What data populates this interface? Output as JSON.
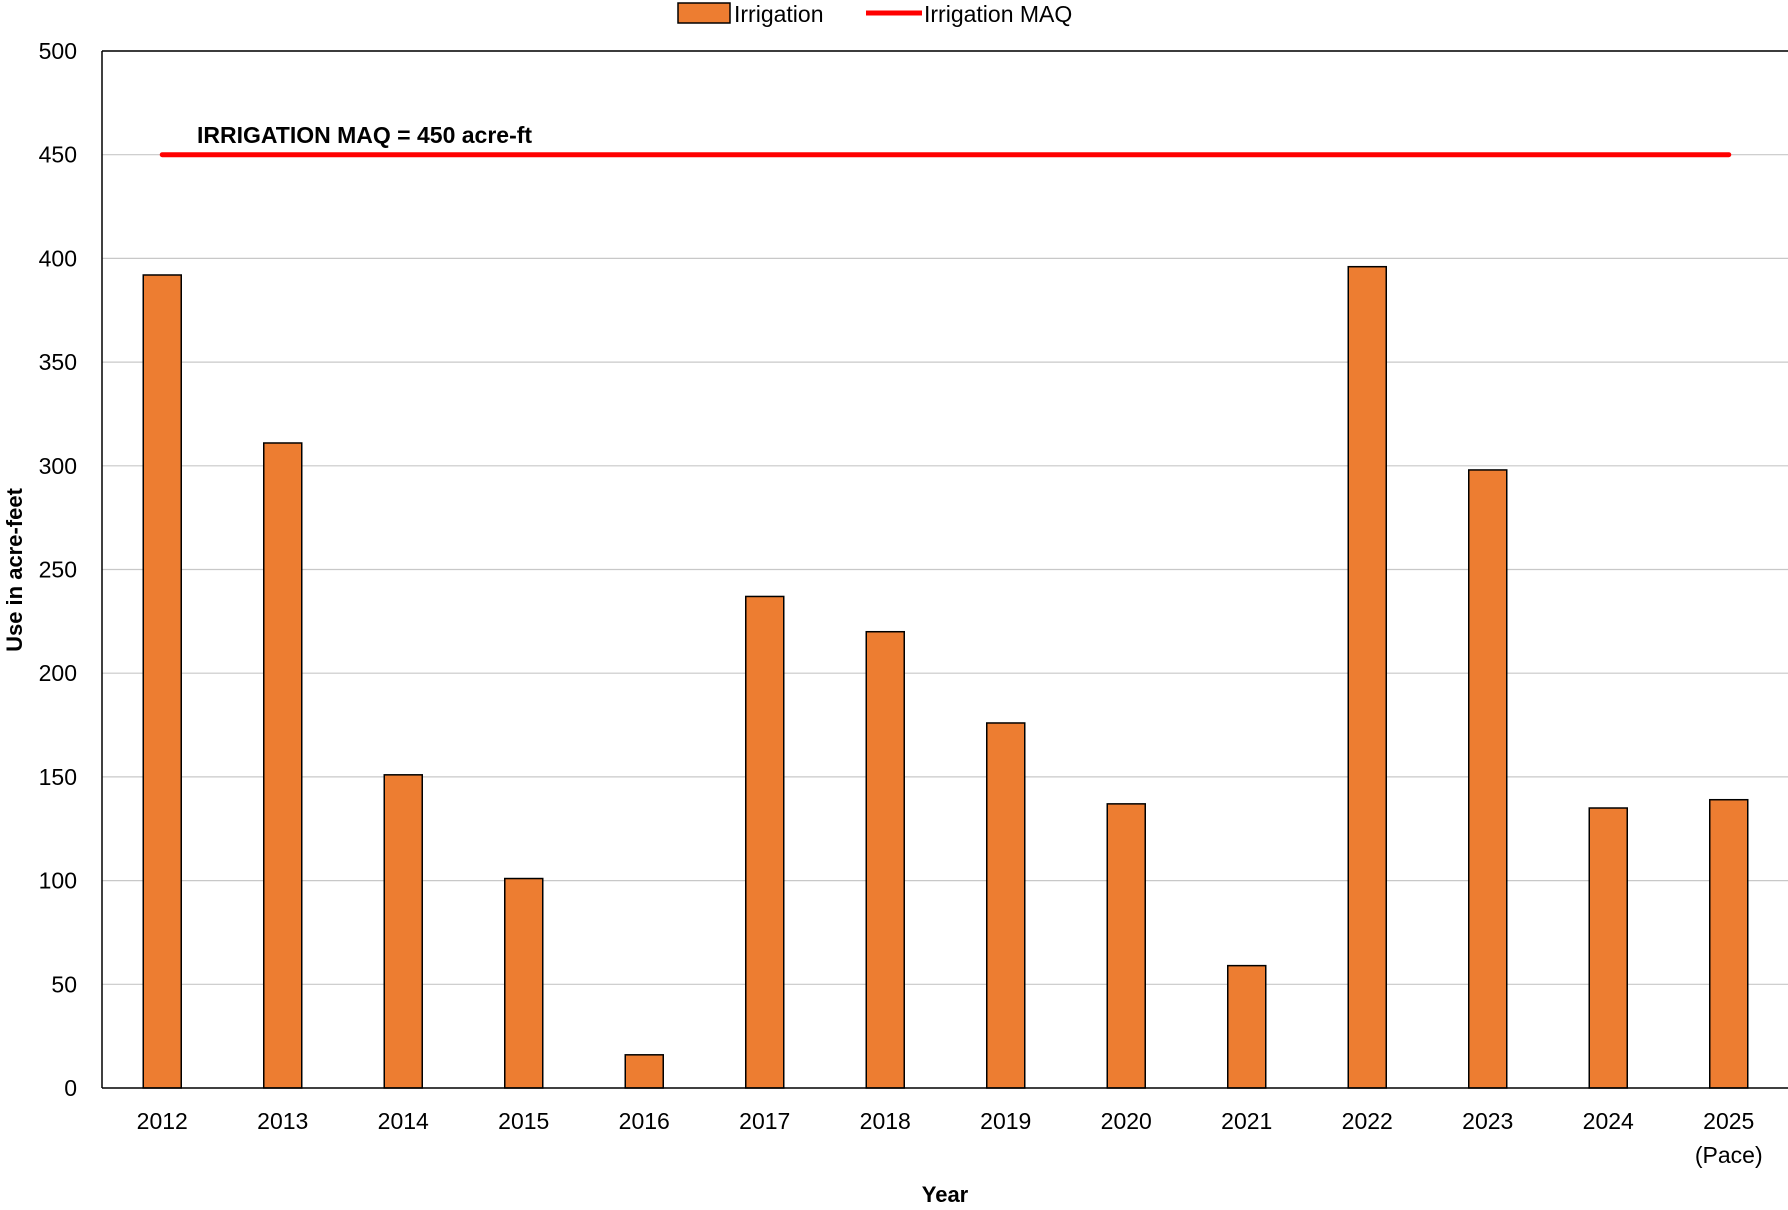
{
  "chart_data": {
    "type": "bar",
    "categories": [
      "2012",
      "2013",
      "2014",
      "2015",
      "2016",
      "2017",
      "2018",
      "2019",
      "2020",
      "2021",
      "2022",
      "2023",
      "2024",
      "2025"
    ],
    "category_sublabels": [
      "",
      "",
      "",
      "",
      "",
      "",
      "",
      "",
      "",
      "",
      "",
      "",
      "",
      "(Pace)"
    ],
    "series": [
      {
        "name": "Irrigation",
        "color": "#ED7D31",
        "values": [
          392,
          311,
          151,
          101,
          16,
          237,
          220,
          176,
          137,
          59,
          396,
          298,
          135,
          139
        ]
      }
    ],
    "reference_line": {
      "name": "Irrigation MAQ",
      "value": 450,
      "color": "#FF0000",
      "label": "IRRIGATION MAQ = 450 acre-ft"
    },
    "xlabel": "Year",
    "ylabel": "Use in acre-feet",
    "ylim": [
      0,
      500
    ],
    "yticks": [
      0,
      50,
      100,
      150,
      200,
      250,
      300,
      350,
      400,
      450,
      500
    ],
    "grid": true,
    "legend_position": "top-center"
  }
}
